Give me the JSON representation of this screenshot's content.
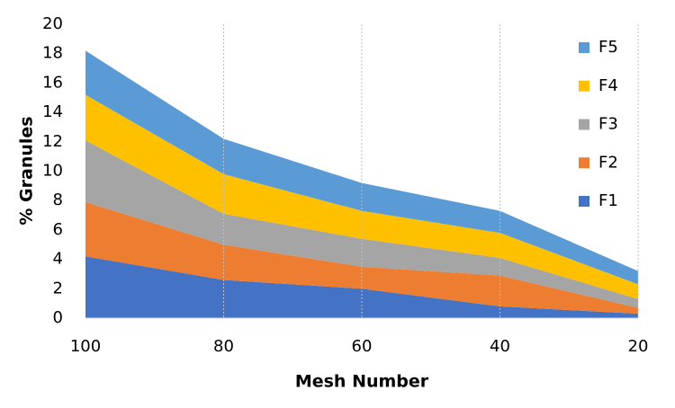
{
  "chart_data": {
    "type": "stacked-area",
    "x_label": "Mesh Number",
    "y_label": "% Granules",
    "categories": [
      "100",
      "80",
      "60",
      "40",
      "20"
    ],
    "series": [
      {
        "name": "F1",
        "color": "#4472c4",
        "values": [
          4.2,
          2.6,
          2.0,
          0.8,
          0.3
        ]
      },
      {
        "name": "F2",
        "color": "#ed7d31",
        "values": [
          3.7,
          2.4,
          1.5,
          2.1,
          0.4
        ]
      },
      {
        "name": "F3",
        "color": "#a5a5a5",
        "values": [
          4.2,
          2.1,
          1.9,
          1.2,
          0.6
        ]
      },
      {
        "name": "F4",
        "color": "#ffc000",
        "values": [
          3.1,
          2.7,
          1.9,
          1.7,
          1.0
        ]
      },
      {
        "name": "F5",
        "color": "#5b9bd5",
        "values": [
          3.0,
          2.4,
          1.9,
          1.5,
          0.9
        ]
      }
    ],
    "ylim": [
      0,
      20
    ],
    "yticks": [
      0,
      2,
      4,
      6,
      8,
      10,
      12,
      14,
      16,
      18,
      20
    ],
    "grid": "vertical",
    "legend": "right"
  }
}
